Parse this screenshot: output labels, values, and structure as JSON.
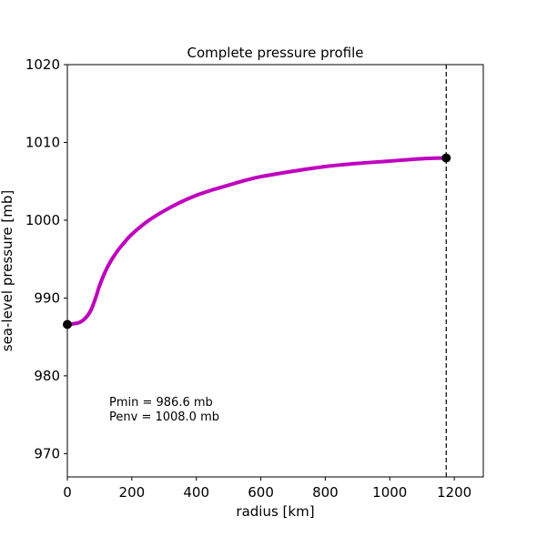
{
  "chart_data": {
    "type": "line",
    "title": "Complete pressure profile",
    "xlabel": "radius [km]",
    "ylabel": "sea-level pressure [mb]",
    "xlim": [
      0,
      1290
    ],
    "ylim": [
      967,
      1020
    ],
    "xticks": [
      0,
      200,
      400,
      600,
      800,
      1000,
      1200
    ],
    "yticks": [
      970,
      980,
      990,
      1000,
      1010,
      1020
    ],
    "series": [
      {
        "name": "pressure profile",
        "color": "#bf00bf",
        "x": [
          0,
          20,
          40,
          60,
          75,
          90,
          100,
          120,
          140,
          160,
          180,
          200,
          250,
          300,
          350,
          400,
          450,
          500,
          550,
          600,
          700,
          800,
          900,
          1000,
          1100,
          1175
        ],
        "y": [
          986.6,
          986.7,
          986.9,
          987.6,
          988.6,
          990.3,
          991.6,
          993.6,
          995.1,
          996.3,
          997.3,
          998.2,
          999.9,
          1001.2,
          1002.3,
          1003.2,
          1003.9,
          1004.5,
          1005.1,
          1005.6,
          1006.3,
          1006.9,
          1007.3,
          1007.6,
          1007.9,
          1008.0
        ]
      }
    ],
    "markers": [
      {
        "name": "pmin-marker",
        "x": 0,
        "y": 986.6,
        "color": "#000000"
      },
      {
        "name": "penv-marker",
        "x": 1175,
        "y": 1008.0,
        "color": "#000000"
      }
    ],
    "vline": {
      "x": 1175,
      "color": "#000000",
      "style": "dashed"
    },
    "annotations": [
      "Pmin = 986.6 mb",
      "Penv = 1008.0 mb"
    ],
    "grid": false
  }
}
